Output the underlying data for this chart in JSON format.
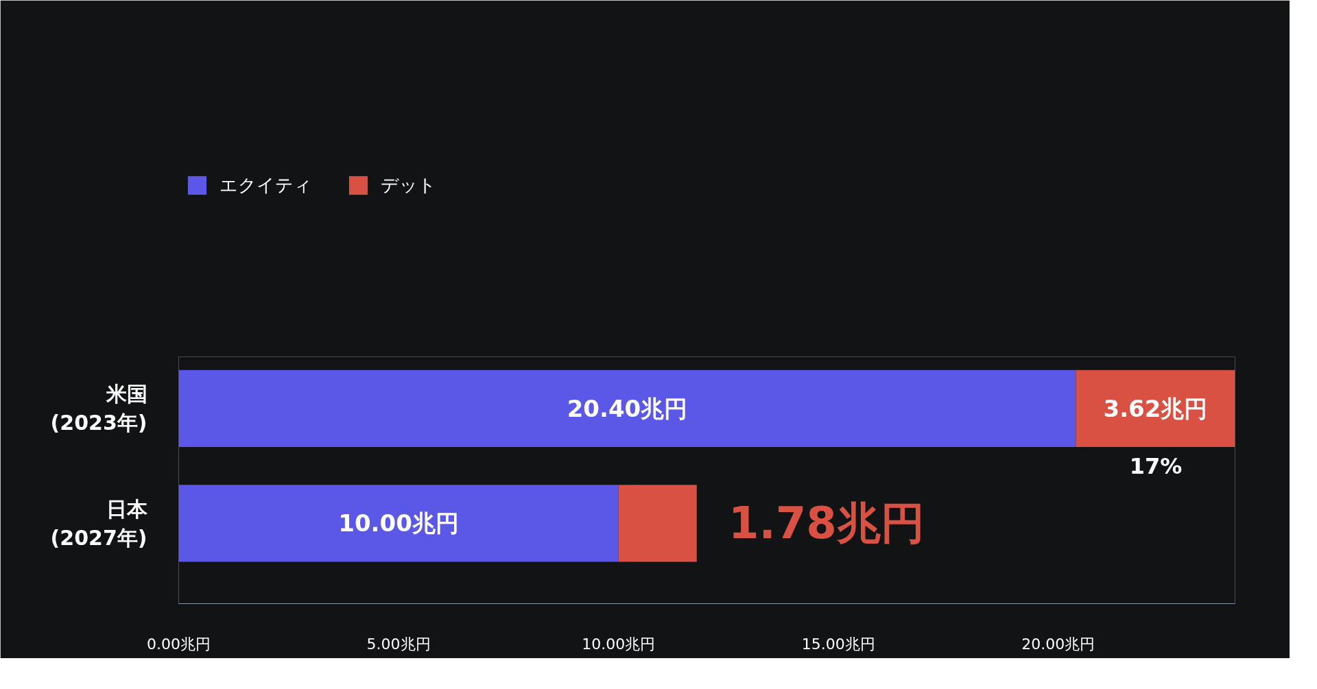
{
  "chart_data": {
    "type": "bar",
    "orientation": "horizontal",
    "stacked": true,
    "categories": [
      "米国\n(2023年)",
      "日本\n(2027年)"
    ],
    "series": [
      {
        "name": "エクイティ",
        "color": "#5b58e8",
        "values": [
          20.4,
          10.0
        ],
        "value_labels": [
          "20.40兆円",
          "10.00兆円"
        ]
      },
      {
        "name": "デット",
        "color": "#d85142",
        "values": [
          3.62,
          1.78
        ],
        "value_labels": [
          "3.62兆円",
          "1.78兆円"
        ]
      }
    ],
    "xlim": [
      0,
      24.02
    ],
    "xticks": [
      {
        "value": 0,
        "label": "0.00兆円"
      },
      {
        "value": 5,
        "label": "5.00兆円"
      },
      {
        "value": 10,
        "label": "10.00兆円"
      },
      {
        "value": 15,
        "label": "15.00兆円"
      },
      {
        "value": 20,
        "label": "20.00兆円"
      }
    ],
    "annotations": [
      "17%"
    ],
    "legend": "top left",
    "grid": false
  }
}
